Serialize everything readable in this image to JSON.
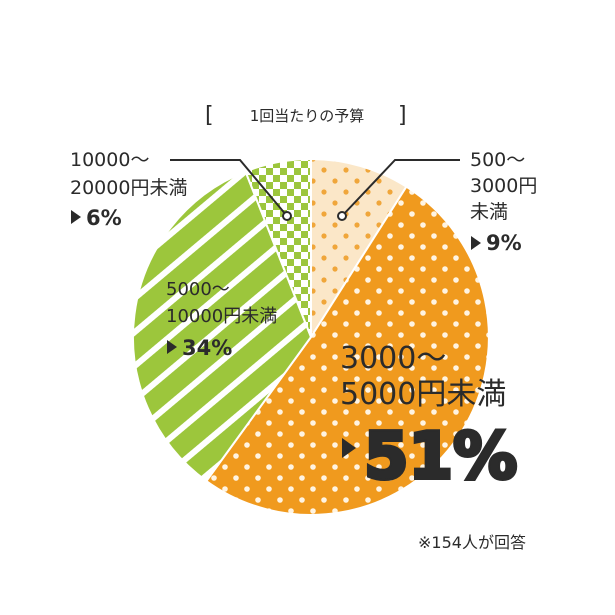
{
  "chart_data": {
    "type": "pie",
    "title": "1回当たりの予算",
    "footnote": "※154人が回答",
    "slices": [
      {
        "label_lines": [
          "500〜",
          "3000円",
          "未満"
        ],
        "value": 9,
        "value_label": "9%",
        "color": "#f7c98e",
        "pattern": "dots"
      },
      {
        "label_lines": [
          "3000〜",
          "5000円未満"
        ],
        "value": 51,
        "value_label": "51%",
        "color": "#f09a1e",
        "pattern": "dots"
      },
      {
        "label_lines": [
          "5000〜",
          "10000円未満"
        ],
        "value": 34,
        "value_label": "34%",
        "color": "#9cc63c",
        "pattern": "stripes"
      },
      {
        "label_lines": [
          "10000〜",
          "20000円未満"
        ],
        "value": 6,
        "value_label": "6%",
        "color": "#9cc63c",
        "pattern": "checker"
      }
    ]
  },
  "colors": {
    "ink": "#2b2b2b",
    "background": "#ffffff"
  }
}
